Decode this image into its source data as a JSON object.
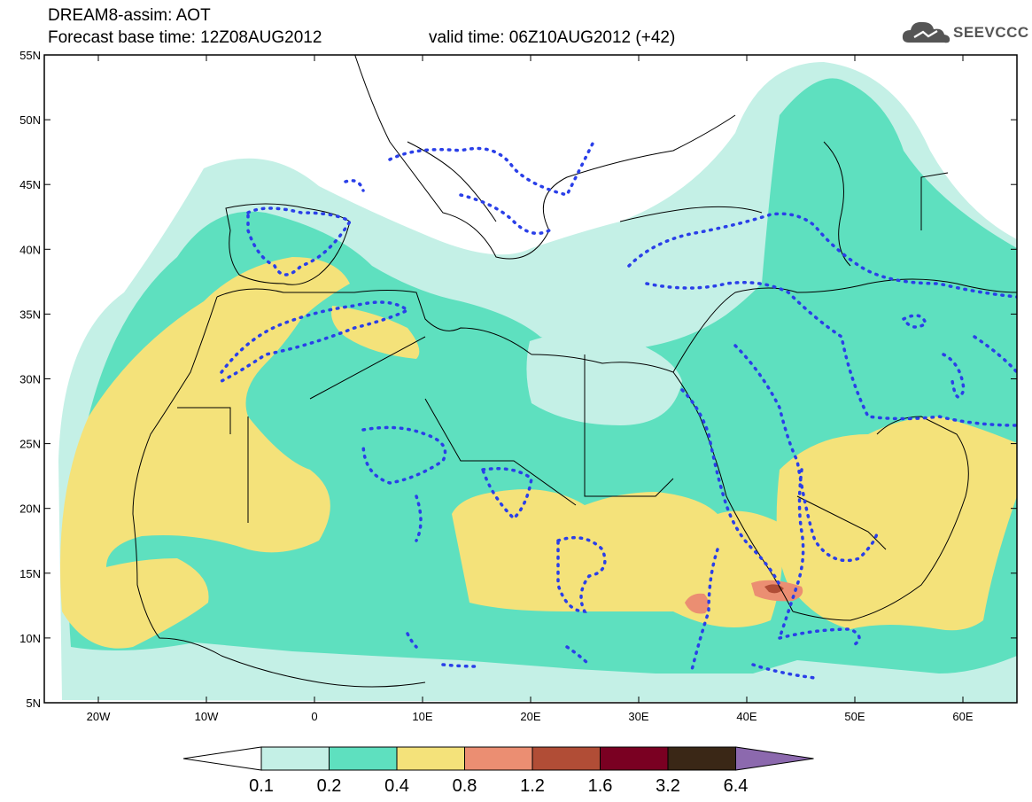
{
  "header": {
    "title": "DREAM8-assim: AOT",
    "base_time": "Forecast base time: 12Z08AUG2012",
    "valid_time": "valid time: 06Z10AUG2012 (+42)",
    "logo_text": "SEEVCCC"
  },
  "map": {
    "lon_range": [
      -25,
      65
    ],
    "lat_range": [
      5,
      55
    ],
    "lat_ticks": [
      "55N",
      "50N",
      "45N",
      "40N",
      "35N",
      "30N",
      "25N",
      "20N",
      "15N",
      "10N",
      "5N"
    ],
    "lon_ticks": [
      "20W",
      "10W",
      "0",
      "10E",
      "20E",
      "30E",
      "40E",
      "50E",
      "60E"
    ],
    "contour_line_color": "#2a3fe8",
    "coastline_color": "#000000"
  },
  "colorbar": {
    "levels": [
      "0.1",
      "0.2",
      "0.4",
      "0.8",
      "1.2",
      "1.6",
      "3.2",
      "6.4"
    ],
    "colors": [
      "#c4f0e6",
      "#5ee0bf",
      "#f4e27a",
      "#eb8e72",
      "#b14d36",
      "#7a0022",
      "#3a2716",
      "#8c69ae"
    ],
    "below_color": "#ffffff"
  }
}
